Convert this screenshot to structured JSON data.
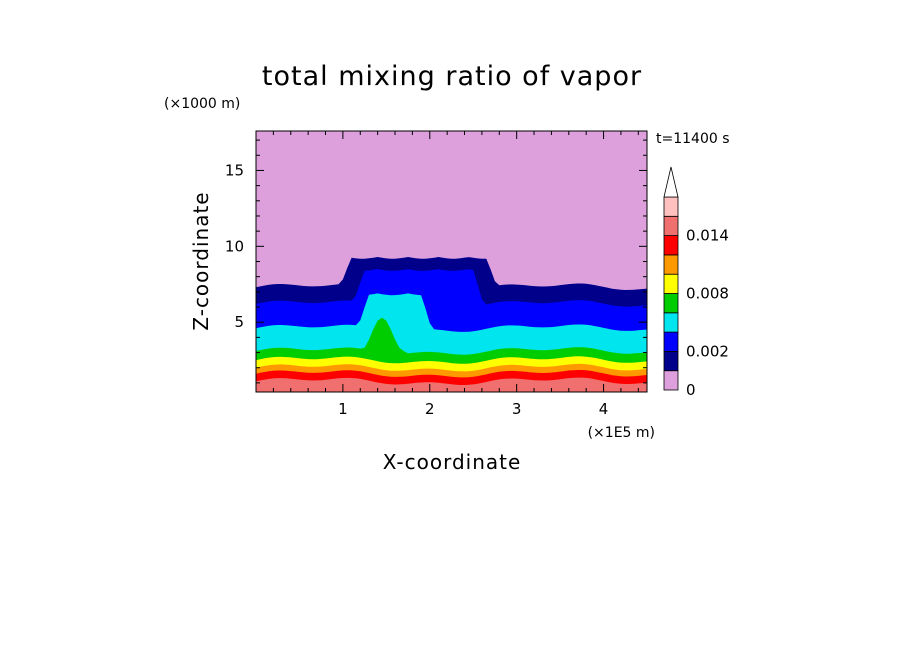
{
  "chart_data": {
    "type": "heatmap",
    "title": "total mixing ratio of vapor",
    "xlabel": "X-coordinate",
    "ylabel": "Z-coordinate",
    "x_unit": "(×1E5 m)",
    "y_unit": "(×1000 m)",
    "time_label": "t=11400 s",
    "xlim": [
      0,
      4.5
    ],
    "ylim": [
      0.4,
      17.6
    ],
    "x_ticks": [
      "1",
      "2",
      "3",
      "4"
    ],
    "y_ticks": [
      "5",
      "10",
      "15"
    ],
    "colorbar_ticks": [
      "0",
      "0.002",
      "0.008",
      "0.014"
    ],
    "levels": [
      0,
      0.001,
      0.002,
      0.004,
      0.006,
      0.008,
      0.01,
      0.012,
      0.014,
      0.016
    ],
    "level_colors": [
      "#dda0dd",
      "#00008b",
      "#0000ff",
      "#00e5ee",
      "#00cd00",
      "#ffff00",
      "#ff9900",
      "#ff0000",
      "#f07070",
      "#ffc0c0"
    ],
    "contour_boundaries_km": [
      {
        "level": 0.001,
        "base_height": 7.3,
        "anvil_height": 9.3,
        "anvil_x": [
          1.1,
          2.65
        ]
      },
      {
        "level": 0.002,
        "base_height": 6.2,
        "anvil_height": 8.5,
        "anvil_x": [
          1.25,
          2.5
        ]
      },
      {
        "level": 0.004,
        "base_height": 4.6,
        "anvil_height": 6.9,
        "anvil_x": [
          1.3,
          1.9
        ]
      },
      {
        "level": 0.006,
        "base_height": 3.1,
        "core_height": 5.3,
        "core_x": [
          1.35,
          1.55
        ]
      },
      {
        "level": 0.008,
        "base_height": 2.5
      },
      {
        "level": 0.01,
        "base_height": 2.0
      },
      {
        "level": 0.012,
        "base_height": 1.6
      },
      {
        "level": 0.014,
        "base_height": 1.1
      }
    ]
  }
}
